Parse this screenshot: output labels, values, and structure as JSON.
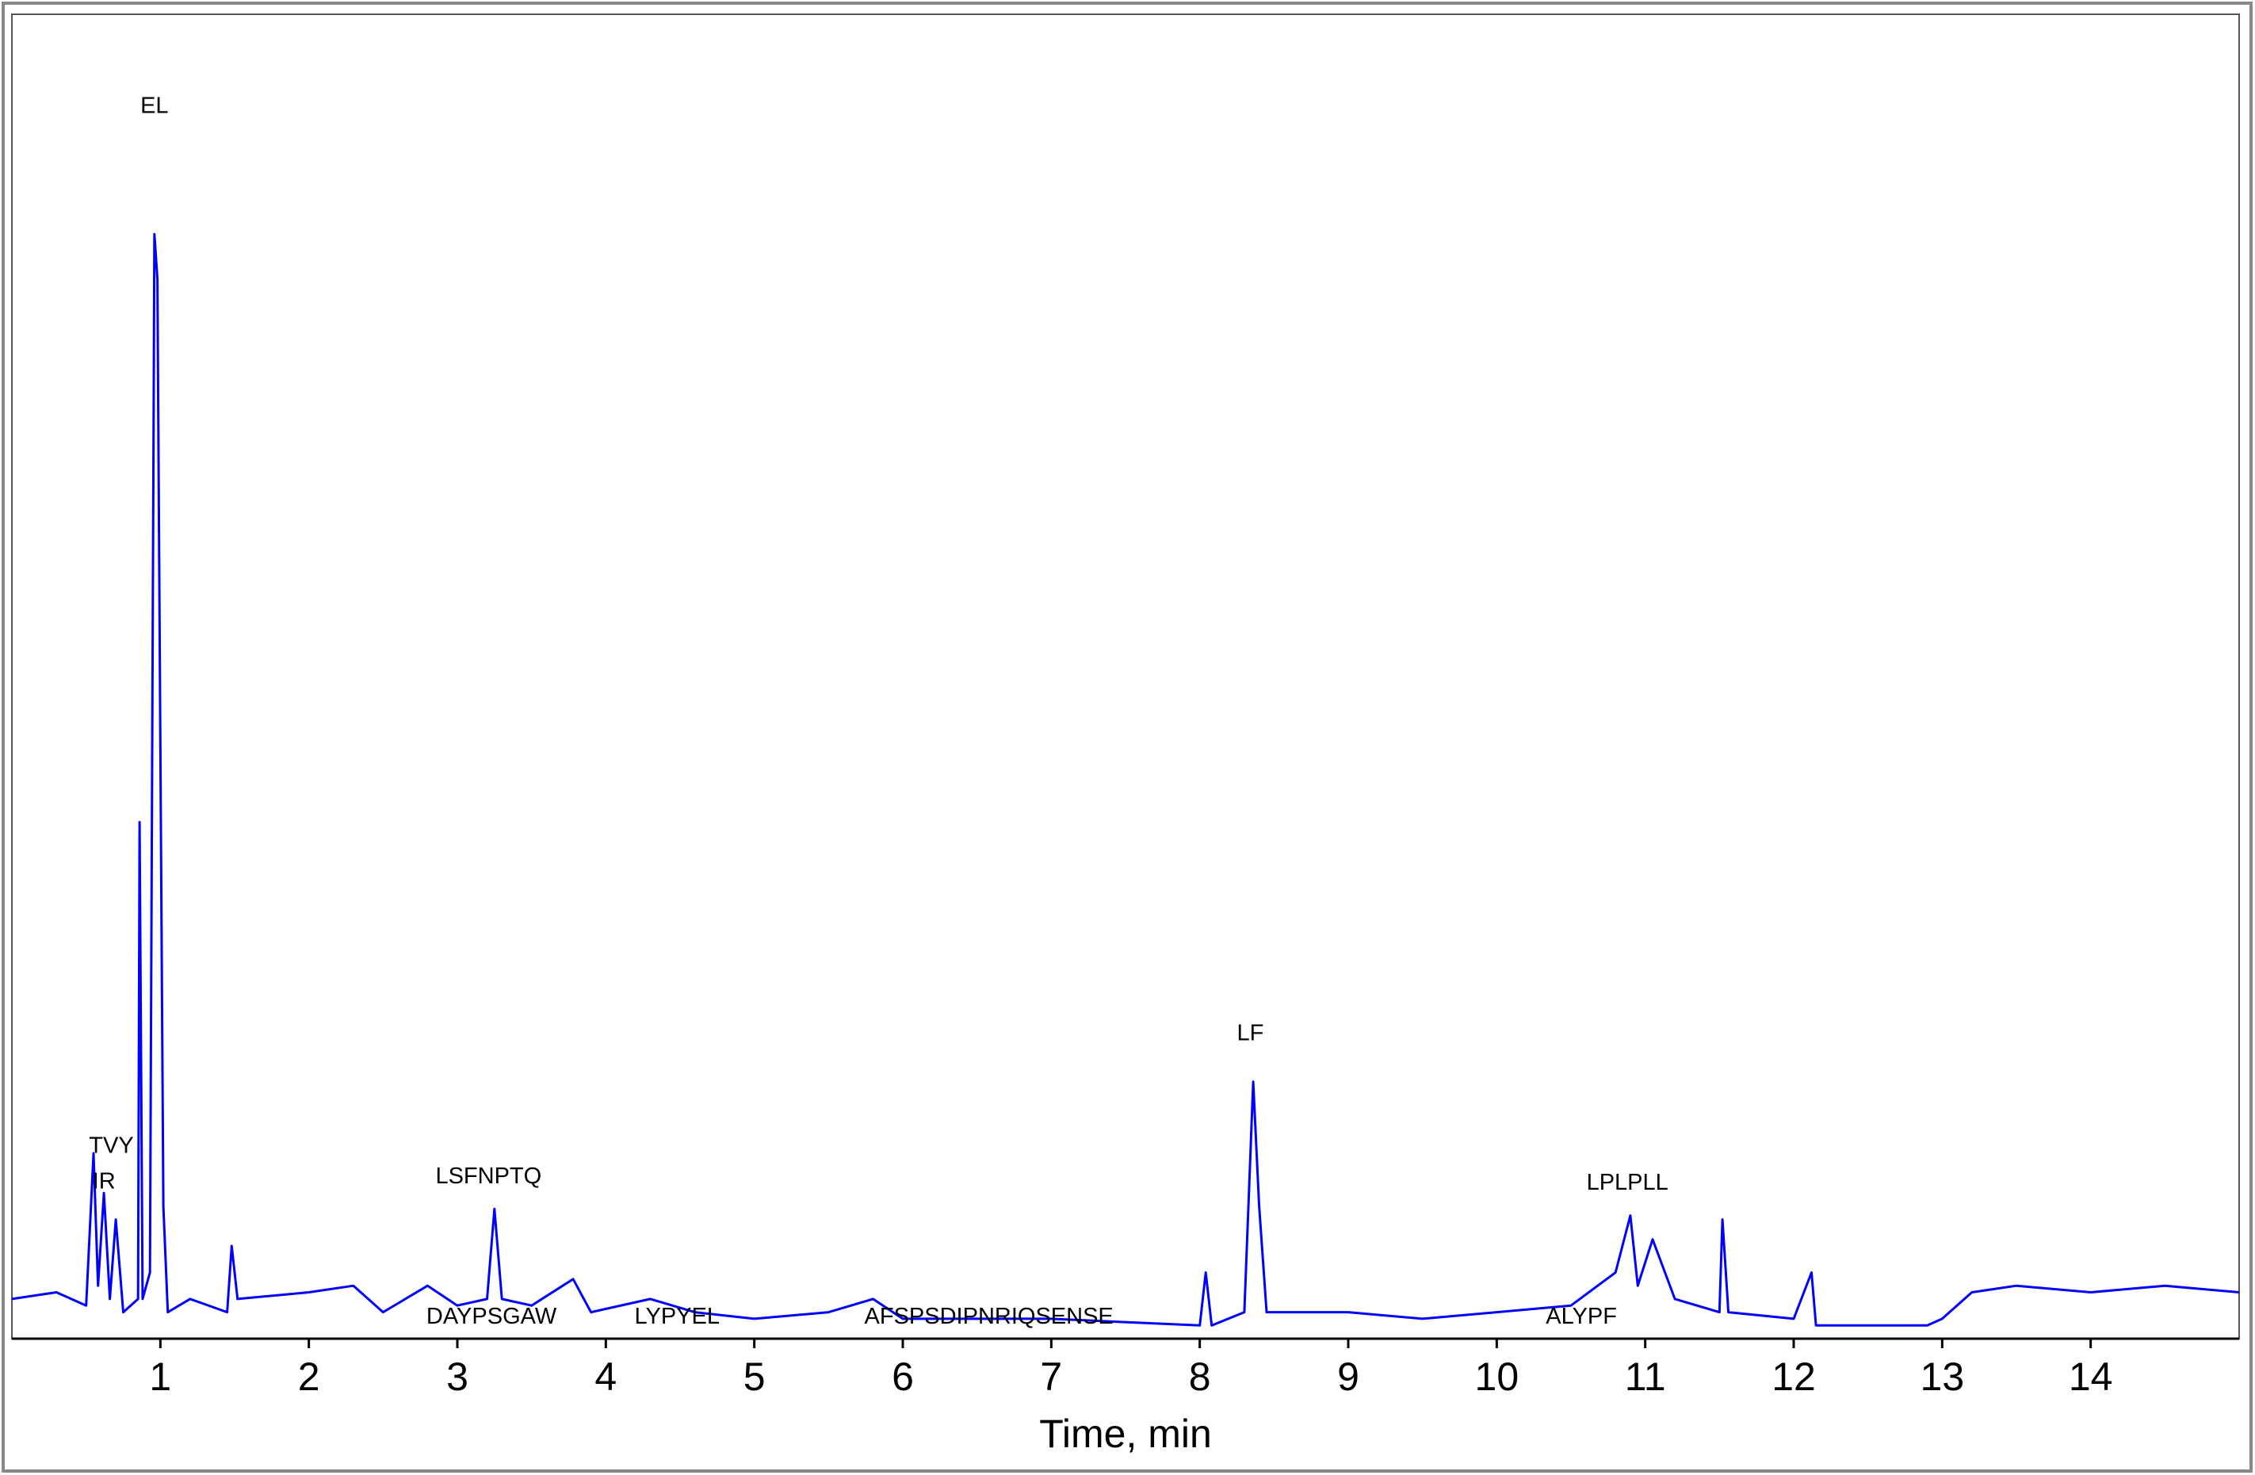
{
  "chart_data": {
    "type": "line",
    "x_label": "Time, min",
    "color": "#0000ff",
    "xlim": [
      0,
      15
    ],
    "xticks": [
      1,
      2,
      3,
      4,
      5,
      6,
      7,
      8,
      9,
      10,
      11,
      12,
      13,
      14
    ],
    "ylim": [
      0,
      100
    ],
    "x": [
      0,
      0.3,
      0.5,
      0.55,
      0.58,
      0.62,
      0.66,
      0.7,
      0.75,
      0.85,
      0.86,
      0.88,
      0.93,
      0.96,
      0.98,
      1.0,
      1.02,
      1.05,
      1.2,
      1.45,
      1.48,
      1.52,
      2.0,
      2.3,
      2.5,
      2.8,
      3.0,
      3.2,
      3.25,
      3.3,
      3.5,
      3.78,
      3.9,
      4.3,
      4.6,
      5.0,
      5.5,
      5.8,
      6.0,
      7.0,
      8.0,
      8.04,
      8.08,
      8.3,
      8.36,
      8.4,
      8.45,
      9.0,
      9.5,
      10.0,
      10.5,
      10.8,
      10.9,
      10.95,
      11.05,
      11.2,
      11.5,
      11.52,
      11.56,
      12.0,
      12.12,
      12.15,
      12.9,
      13.0,
      13.2,
      13.5,
      14.0,
      14.5,
      15.0
    ],
    "values": [
      3,
      3.5,
      2.5,
      14,
      4,
      11,
      3,
      9,
      2,
      3,
      39,
      3,
      5,
      83.4,
      80,
      45,
      10,
      2,
      3,
      2,
      7,
      3,
      3.5,
      4,
      2,
      4,
      2.5,
      3,
      9.8,
      3,
      2.5,
      4.5,
      2,
      3,
      2,
      1.5,
      2,
      3,
      1.5,
      1.5,
      1,
      5,
      1,
      2,
      19.4,
      10,
      2,
      2,
      1.5,
      2,
      2.5,
      5,
      9.3,
      4,
      7.5,
      3,
      2,
      9,
      2,
      1.5,
      5,
      1,
      1,
      1.5,
      3.5,
      4,
      3.5,
      4,
      3.5
    ],
    "annotations": [
      {
        "text": "EL",
        "x": 0.96,
        "y": 93
      },
      {
        "text": "TVY",
        "x": 0.67,
        "y": 14.5
      },
      {
        "text": "IR",
        "x": 0.62,
        "y": 11.8
      },
      {
        "text": "LSFNPTQ",
        "x": 3.21,
        "y": 12.2
      },
      {
        "text": "LF",
        "x": 8.34,
        "y": 23
      },
      {
        "text": "LPLPLL",
        "x": 10.88,
        "y": 11.7
      },
      {
        "text": "DAYPSGAW",
        "x": 3.23,
        "y": 1.6
      },
      {
        "text": "LYPYEL",
        "x": 4.48,
        "y": 1.6
      },
      {
        "text": "AFSPSDIPNRIQSENSE",
        "x": 6.58,
        "y": 1.6
      },
      {
        "text": "ALYPF",
        "x": 10.57,
        "y": 1.6
      }
    ]
  }
}
